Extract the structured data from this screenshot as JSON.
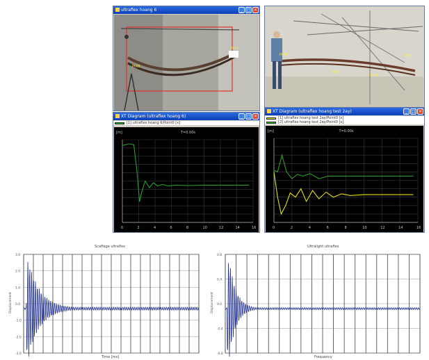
{
  "window1": {
    "title": "ultraflex hoang 6"
  },
  "window2": {
    "title": ""
  },
  "diagram1": {
    "title": "XT Diagram (ultraflex hoang 6)",
    "legend": [
      "[1] ultraflex hoang 6/Point0 [x]"
    ],
    "legend_colors": [
      "#1fd11f"
    ],
    "unit": "[m]",
    "plot_title": "T=0.00s",
    "xticks": [
      "0",
      "2",
      "4",
      "6",
      "8",
      "10",
      "12",
      "14",
      "16"
    ]
  },
  "diagram2": {
    "title": "XT Diagram (ultraflex hoang test 2ay)",
    "legend": [
      "[1] ultraflex hoang test 2ay/Point0 [x]",
      "[2] ultraflex hoang test 2ay/Point0 [x]"
    ],
    "legend_colors": [
      "#f0e818",
      "#1fd11f"
    ],
    "unit": "[m]",
    "plot_title": "T=0.00s",
    "xticks": [
      "0",
      "2",
      "4",
      "6",
      "8",
      "10",
      "12",
      "14",
      "16"
    ]
  },
  "chart_data": [
    {
      "type": "line",
      "title": "",
      "xlabel": "",
      "ylabel": "",
      "series": [
        {
          "color": "#2f9a2f",
          "x": [
            0,
            0.8,
            1.4,
            1.8,
            2.1,
            2.4,
            2.8,
            3.3,
            3.8,
            4.3,
            4.9,
            5.6,
            6.5,
            8,
            10,
            12,
            14,
            15.5
          ],
          "y": [
            0.93,
            0.95,
            0.94,
            0.6,
            0.25,
            0.38,
            0.5,
            0.42,
            0.48,
            0.44,
            0.46,
            0.44,
            0.45,
            0.445,
            0.45,
            0.45,
            0.45,
            0.45
          ]
        }
      ]
    },
    {
      "type": "line",
      "title": "",
      "xlabel": "",
      "ylabel": "",
      "series": [
        {
          "color": "#2f9a2f",
          "x": [
            0,
            0.4,
            0.9,
            1.4,
            2,
            2.6,
            3.2,
            4,
            5,
            6,
            8,
            10,
            12,
            14,
            15.5
          ],
          "y": [
            0.62,
            0.6,
            0.8,
            0.6,
            0.52,
            0.57,
            0.55,
            0.58,
            0.52,
            0.55,
            0.55,
            0.55,
            0.55,
            0.55,
            0.55
          ]
        },
        {
          "color": "#e6e010",
          "x": [
            0,
            0.4,
            0.8,
            1.3,
            1.8,
            2.4,
            3,
            3.6,
            4.3,
            5,
            5.8,
            6.6,
            7.5,
            8.5,
            10,
            12,
            14,
            15.5
          ],
          "y": [
            0.6,
            0.3,
            0.1,
            0.2,
            0.35,
            0.3,
            0.4,
            0.25,
            0.38,
            0.28,
            0.36,
            0.3,
            0.34,
            0.32,
            0.33,
            0.33,
            0.33,
            0.33
          ]
        }
      ]
    }
  ],
  "bottom_left": {
    "title": "Scaffage ultraflex",
    "xlabel": "Time [ms]",
    "ylabel": "Displacement",
    "yticks": [
      "3.0",
      "2.0",
      "1.0",
      "0.0",
      "-1.0",
      "-2.0",
      "-3.0"
    ]
  },
  "bottom_right": {
    "title": "Ultralight ultraflex",
    "xlabel": "Frequency",
    "ylabel": "Displacement",
    "yticks": [
      "0.8",
      "0.4",
      "0.0",
      "-0.4",
      "-0.8"
    ]
  }
}
